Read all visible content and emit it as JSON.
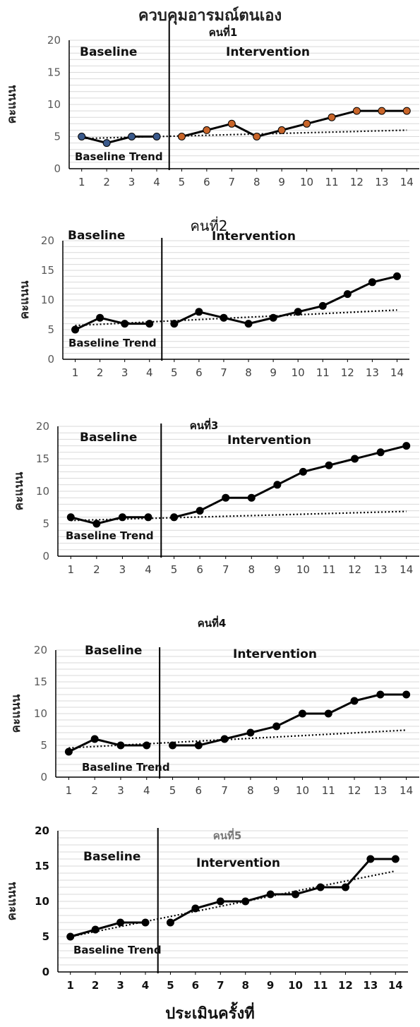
{
  "main_title": "ควบคุมอารมณ์ตนเอง",
  "x_axis_title": "ประเมินครั้งที่",
  "chart_data": [
    {
      "type": "line",
      "title": "คนที่1",
      "ylabel": "คะแนน",
      "ylim": [
        0,
        20
      ],
      "yticks": [
        0,
        5,
        10,
        15,
        20
      ],
      "x": [
        1,
        2,
        3,
        4,
        5,
        6,
        7,
        8,
        9,
        10,
        11,
        12,
        13,
        14
      ],
      "phase_change_after": 4,
      "phase_labels": [
        "Baseline",
        "Intervention"
      ],
      "trend_label": "Baseline Trend",
      "grid": true,
      "series": [
        {
          "values": [
            5,
            4,
            5,
            5,
            5,
            6,
            7,
            5,
            6,
            7,
            8,
            9,
            9,
            9
          ]
        }
      ],
      "trend": {
        "start": 4.7,
        "end": 6.0
      },
      "colors": {
        "baseline_marker": "#3b5a8c",
        "intervention_marker": "#c8652a",
        "line": "#000000"
      }
    },
    {
      "type": "line",
      "title": "คนที่2",
      "ylabel": "คะแนน",
      "ylim": [
        0,
        20
      ],
      "yticks": [
        0,
        5,
        10,
        15,
        20
      ],
      "x": [
        1,
        2,
        3,
        4,
        5,
        6,
        7,
        8,
        9,
        10,
        11,
        12,
        13,
        14
      ],
      "phase_change_after": 4,
      "phase_labels": [
        "Baseline",
        "Intervention"
      ],
      "trend_label": "Baseline Trend",
      "grid": true,
      "series": [
        {
          "values": [
            5,
            7,
            6,
            6,
            6,
            8,
            7,
            6,
            7,
            8,
            9,
            11,
            13,
            14
          ]
        }
      ],
      "trend": {
        "start": 5.7,
        "end": 8.3
      },
      "colors": {
        "baseline_marker": "#000000",
        "intervention_marker": "#000000",
        "line": "#000000"
      }
    },
    {
      "type": "line",
      "title": "คนที่3",
      "ylabel": "คะแนน",
      "ylim": [
        0,
        20
      ],
      "yticks": [
        0,
        5,
        10,
        15,
        20
      ],
      "x": [
        1,
        2,
        3,
        4,
        5,
        6,
        7,
        8,
        9,
        10,
        11,
        12,
        13,
        14
      ],
      "phase_change_after": 4,
      "phase_labels": [
        "Baseline",
        "Intervention"
      ],
      "trend_label": "Baseline Trend",
      "grid": true,
      "series": [
        {
          "values": [
            6,
            5,
            6,
            6,
            6,
            7,
            9,
            9,
            11,
            13,
            14,
            15,
            16,
            17
          ]
        }
      ],
      "trend": {
        "start": 5.5,
        "end": 6.9
      },
      "colors": {
        "baseline_marker": "#000000",
        "intervention_marker": "#000000",
        "line": "#000000"
      }
    },
    {
      "type": "line",
      "title": "คนที่4",
      "ylabel": "คะแนน",
      "ylim": [
        0,
        20
      ],
      "yticks": [
        0,
        5,
        10,
        15,
        20
      ],
      "x": [
        1,
        2,
        3,
        4,
        5,
        6,
        7,
        8,
        9,
        10,
        11,
        12,
        13,
        14
      ],
      "phase_change_after": 4,
      "phase_labels": [
        "Baseline",
        "Intervention"
      ],
      "trend_label": "Baseline Trend",
      "grid": true,
      "series": [
        {
          "values": [
            4,
            6,
            5,
            5,
            5,
            5,
            6,
            7,
            8,
            10,
            10,
            12,
            13,
            13
          ]
        }
      ],
      "trend": {
        "start": 4.6,
        "end": 7.4
      },
      "colors": {
        "baseline_marker": "#000000",
        "intervention_marker": "#000000",
        "line": "#000000"
      }
    },
    {
      "type": "line",
      "title": "คนที่5",
      "ylabel": "คะแนน",
      "ylim": [
        0,
        20
      ],
      "yticks": [
        0,
        5,
        10,
        15,
        20
      ],
      "x": [
        1,
        2,
        3,
        4,
        5,
        6,
        7,
        8,
        9,
        10,
        11,
        12,
        13,
        14
      ],
      "phase_change_after": 4,
      "phase_labels": [
        "Baseline",
        "Intervention"
      ],
      "trend_label": "Baseline Trend",
      "grid": true,
      "series": [
        {
          "values": [
            5,
            6,
            7,
            7,
            7,
            9,
            10,
            10,
            11,
            11,
            12,
            12,
            16,
            16
          ]
        }
      ],
      "trend": {
        "start": 5.0,
        "end": 14.3
      },
      "colors": {
        "baseline_marker": "#000000",
        "intervention_marker": "#000000",
        "line": "#000000"
      }
    }
  ]
}
